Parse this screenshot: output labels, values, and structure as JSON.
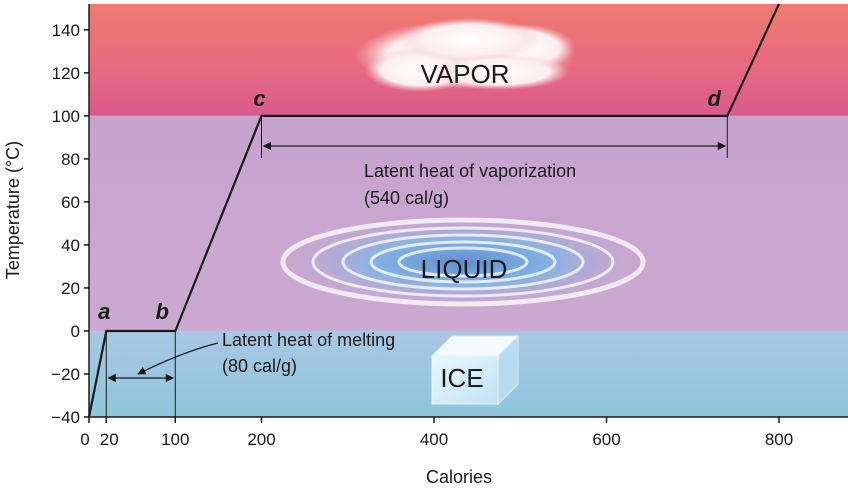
{
  "chart_data": {
    "type": "line",
    "title": "",
    "xlabel": "Calories",
    "ylabel": "Temperature (°C)",
    "xlim": [
      0,
      880
    ],
    "ylim": [
      -40,
      152
    ],
    "x_ticks": [
      0,
      20,
      100,
      200,
      400,
      600,
      800
    ],
    "x_tick_labels": [
      "0",
      "20",
      "100",
      "200",
      "400",
      "600",
      "800"
    ],
    "y_ticks": [
      -40,
      -20,
      0,
      20,
      40,
      60,
      80,
      100,
      120,
      140
    ],
    "y_tick_labels": [
      "−40",
      "−20",
      "0",
      "20",
      "40",
      "60",
      "80",
      "100",
      "120",
      "140"
    ],
    "series": [
      {
        "x": [
          0,
          20,
          100,
          200,
          740,
          800
        ],
        "y": [
          -40,
          0,
          0,
          100,
          100,
          152
        ]
      }
    ],
    "regions": [
      {
        "label": "VAPOR",
        "y_range": [
          100,
          152
        ],
        "color": "#e7687a"
      },
      {
        "label": "LIQUID",
        "y_range": [
          0,
          100
        ],
        "color": "#c9a6cf"
      },
      {
        "label": "ICE",
        "y_range": [
          -40,
          0
        ],
        "color": "#9fcbe0"
      }
    ],
    "point_labels": [
      {
        "label": "a",
        "x": 20,
        "y": 0
      },
      {
        "label": "b",
        "x": 100,
        "y": 0
      },
      {
        "label": "c",
        "x": 200,
        "y": 100
      },
      {
        "label": "d",
        "x": 740,
        "y": 100
      }
    ],
    "annotations": [
      {
        "name": "vaporization",
        "line1": "Latent heat of vaporization",
        "line2": "(540 cal/g)",
        "x_range": [
          200,
          740
        ]
      },
      {
        "name": "melting",
        "line1": "Latent heat of melting",
        "line2": "(80 cal/g)",
        "x_range": [
          20,
          100
        ]
      }
    ],
    "line_color": "#1a1a1a"
  }
}
